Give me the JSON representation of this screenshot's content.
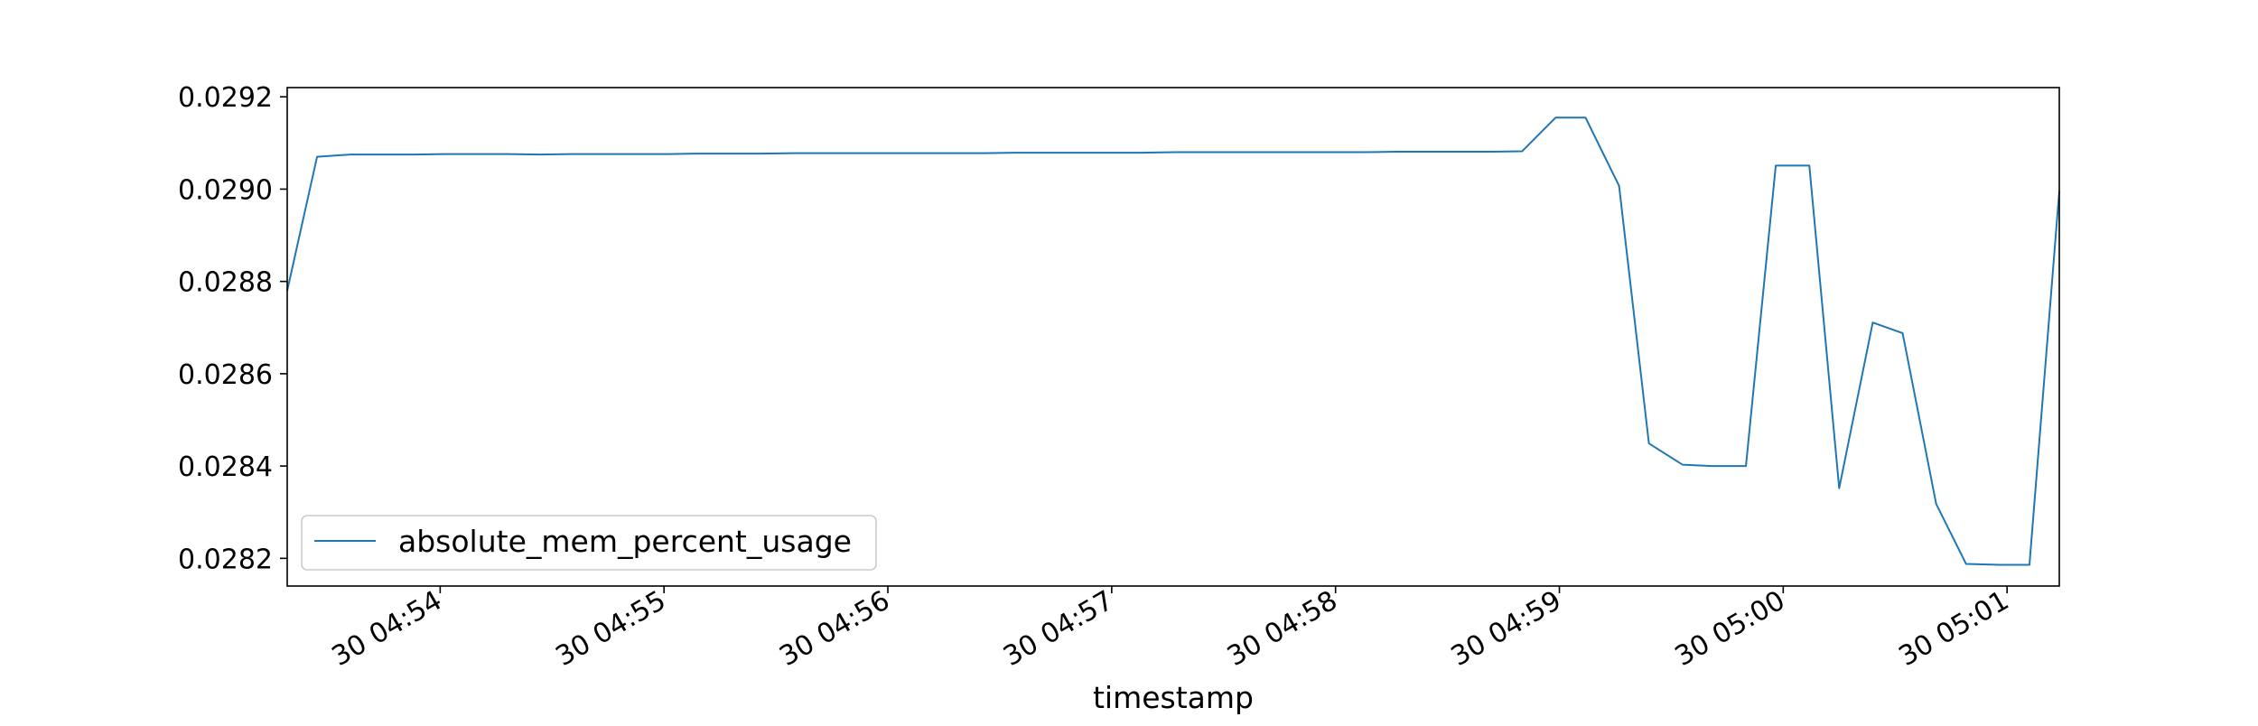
{
  "chart_data": {
    "type": "line",
    "xlabel": "timestamp",
    "ylabel": "",
    "title": "",
    "x_unit": "minute-of-day",
    "xlim": [
      "04:53:19",
      "05:01:14"
    ],
    "ylim": [
      0.02814,
      0.02922
    ],
    "x_ticks": [
      "30 04:54",
      "30 04:55",
      "30 04:56",
      "30 04:57",
      "30 04:58",
      "30 04:59",
      "30 05:00",
      "30 05:01"
    ],
    "y_ticks": [
      "0.0282",
      "0.0284",
      "0.0286",
      "0.0288",
      "0.0290",
      "0.0292"
    ],
    "legend": {
      "position": "lower-left",
      "entries": [
        "absolute_mem_percent_usage"
      ]
    },
    "grid": false,
    "series": [
      {
        "name": "absolute_mem_percent_usage",
        "color": "#1f77b4",
        "x": [
          "04:53:19",
          "04:53:27",
          "04:53:36",
          "04:53:44",
          "04:53:53",
          "04:54:01",
          "04:54:10",
          "04:54:18",
          "04:54:27",
          "04:54:35",
          "04:54:44",
          "04:54:52",
          "04:55:01",
          "04:55:09",
          "04:55:18",
          "04:55:26",
          "04:55:35",
          "04:55:43",
          "04:55:52",
          "04:56:00",
          "04:56:09",
          "04:56:17",
          "04:56:26",
          "04:56:34",
          "04:56:43",
          "04:56:51",
          "04:57:00",
          "04:57:08",
          "04:57:17",
          "04:57:25",
          "04:57:34",
          "04:57:42",
          "04:57:51",
          "04:57:59",
          "04:58:08",
          "04:58:16",
          "04:58:25",
          "04:58:33",
          "04:58:42",
          "04:58:50",
          "04:58:59",
          "04:59:07",
          "04:59:16",
          "04:59:24",
          "04:59:33",
          "04:59:41",
          "04:59:50",
          "04:59:58",
          "05:00:07",
          "05:00:15",
          "05:00:24",
          "05:00:32",
          "05:00:41",
          "05:00:49",
          "05:00:58",
          "05:01:06",
          "05:01:14"
        ],
        "y": [
          0.02878,
          0.02907,
          0.029075,
          0.029075,
          0.029075,
          0.029076,
          0.029076,
          0.029076,
          0.029075,
          0.029076,
          0.029076,
          0.029076,
          0.029076,
          0.029077,
          0.029077,
          0.029077,
          0.029078,
          0.029078,
          0.029078,
          0.029078,
          0.029078,
          0.029078,
          0.029078,
          0.029079,
          0.029079,
          0.029079,
          0.029079,
          0.029079,
          0.02908,
          0.02908,
          0.02908,
          0.02908,
          0.02908,
          0.02908,
          0.02908,
          0.029081,
          0.029081,
          0.029081,
          0.029081,
          0.029082,
          0.029155,
          0.029155,
          0.029007,
          0.028449,
          0.028403,
          0.0284,
          0.0284,
          0.029051,
          0.029051,
          0.028352,
          0.028711,
          0.028688,
          0.028318,
          0.028188,
          0.028186,
          0.028186,
          0.028996
        ]
      }
    ]
  }
}
